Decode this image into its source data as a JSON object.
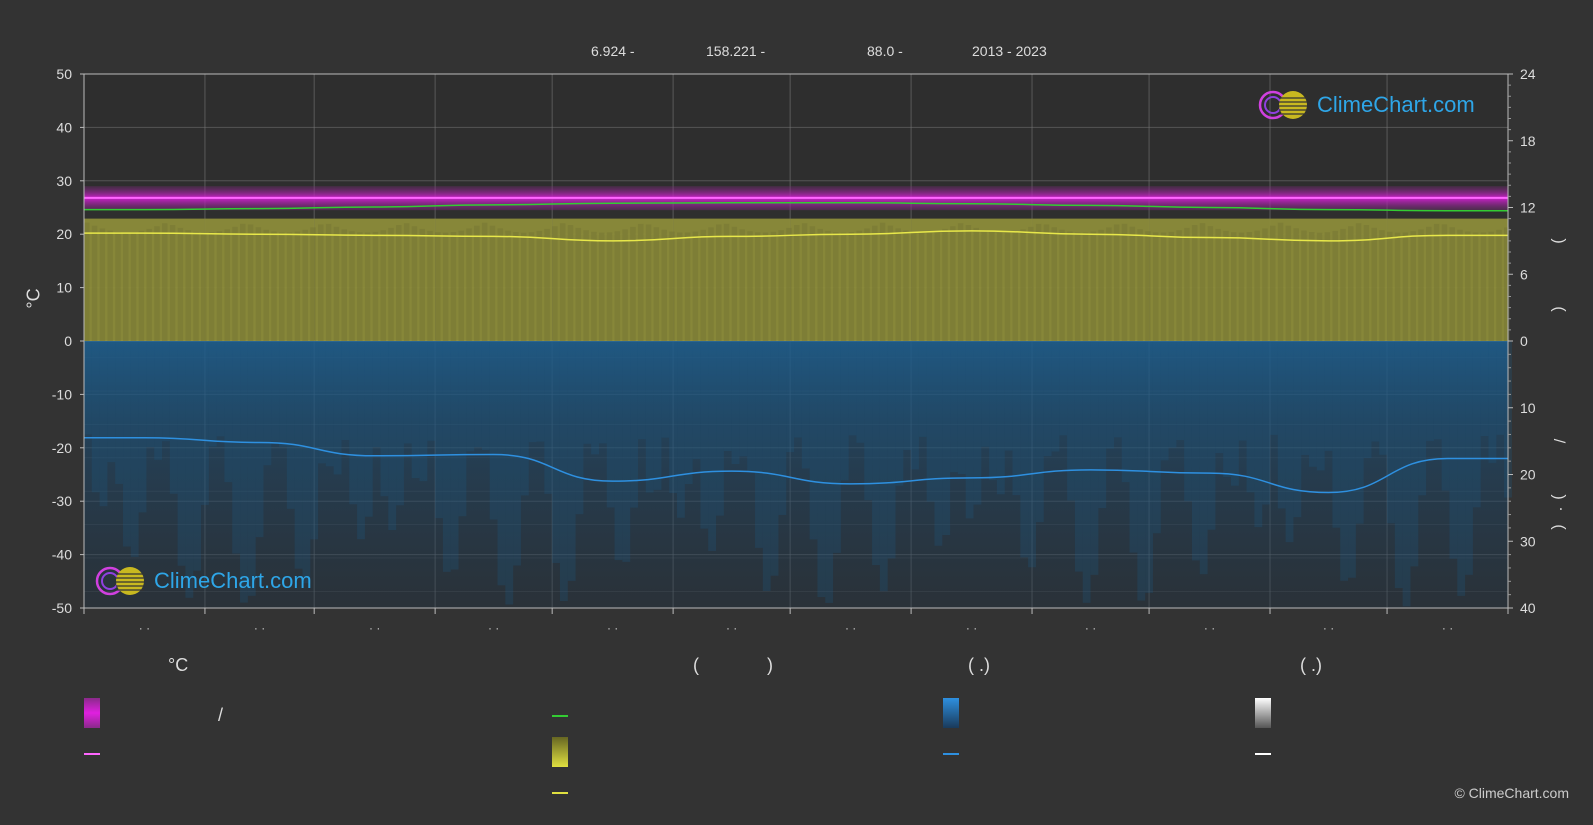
{
  "header": {
    "lat": "6.924 -",
    "lon": "158.221 -",
    "elevation": "88.0 -",
    "years": "2013 - 2023"
  },
  "chart_data": {
    "type": "area",
    "left_axis": {
      "label": "°C",
      "ticks": [
        "50",
        "40",
        "30",
        "20",
        "10",
        "0",
        "-10",
        "-20",
        "-30",
        "-40",
        "-50"
      ],
      "range": [
        -50,
        50
      ]
    },
    "right_axis_top": {
      "ticks": [
        "24",
        "18",
        "12",
        "6",
        "0"
      ],
      "range": [
        0,
        24
      ],
      "label_glyphs": [
        "(",
        ")"
      ]
    },
    "right_axis_bottom": {
      "ticks": [
        "0",
        "10",
        "20",
        "30",
        "40"
      ],
      "range": [
        0,
        40
      ],
      "label_glyphs": [
        "/",
        "(",
        "·",
        ")"
      ]
    },
    "month_tick_labels": [
      "· ·",
      "· ·",
      "· ·",
      "· ·",
      "· ·",
      "· ·",
      "· ·",
      "· ·",
      "· ·",
      "· ·",
      "· ·",
      "· ·"
    ],
    "series": [
      {
        "key": "temp_mean",
        "color": "#ff66ff",
        "values": [
          26.8,
          26.8,
          26.8,
          26.8,
          26.8,
          26.8,
          26.8,
          26.8,
          26.8,
          26.8,
          26.8,
          26.8
        ]
      },
      {
        "key": "temp_band",
        "color": "#cc22cc",
        "range": [
          24.5,
          29.0
        ]
      },
      {
        "key": "green_line",
        "color": "#33cc33",
        "values": [
          24.6,
          24.8,
          25.1,
          25.5,
          25.8,
          25.9,
          25.9,
          25.7,
          25.4,
          25.0,
          24.6,
          24.4
        ]
      },
      {
        "key": "sunshine_hours",
        "color": "#e8e84a",
        "values": [
          9.7,
          9.6,
          9.5,
          9.4,
          9.0,
          9.4,
          9.6,
          9.9,
          9.6,
          9.3,
          9.0,
          9.5
        ]
      },
      {
        "key": "daylight_hours",
        "color": "#c8c832",
        "values": [
          11.0,
          11.0,
          11.0,
          11.0,
          11.0,
          11.0,
          11.0,
          11.0,
          11.0,
          11.0,
          11.0,
          11.0
        ]
      },
      {
        "key": "precipitation_mm_per_day",
        "color": "#2e90e0",
        "values": [
          14.5,
          15.2,
          17.2,
          17.0,
          21.0,
          19.5,
          21.4,
          20.5,
          19.3,
          19.8,
          22.7,
          17.6
        ]
      }
    ]
  },
  "legend": {
    "col1_title": "°C",
    "col1_slash": "/",
    "col2_title_open": "(",
    "col2_title_close": ")",
    "col3_title": "(   .)",
    "col4_title": "(   .)",
    "colors": {
      "temp_band": "#e020e0",
      "temp_line": "#ff66ff",
      "green": "#33cc33",
      "sun_band": "#e0e040",
      "sun_line": "#e0e040",
      "rain_band": "#2e90e0",
      "rain_line": "#2e90e0",
      "snow_band": "#dddddd",
      "snow_line": "#ffffff"
    }
  },
  "logos": {
    "text": "ClimeChart.com"
  },
  "copyright": "© ClimeChart.com"
}
